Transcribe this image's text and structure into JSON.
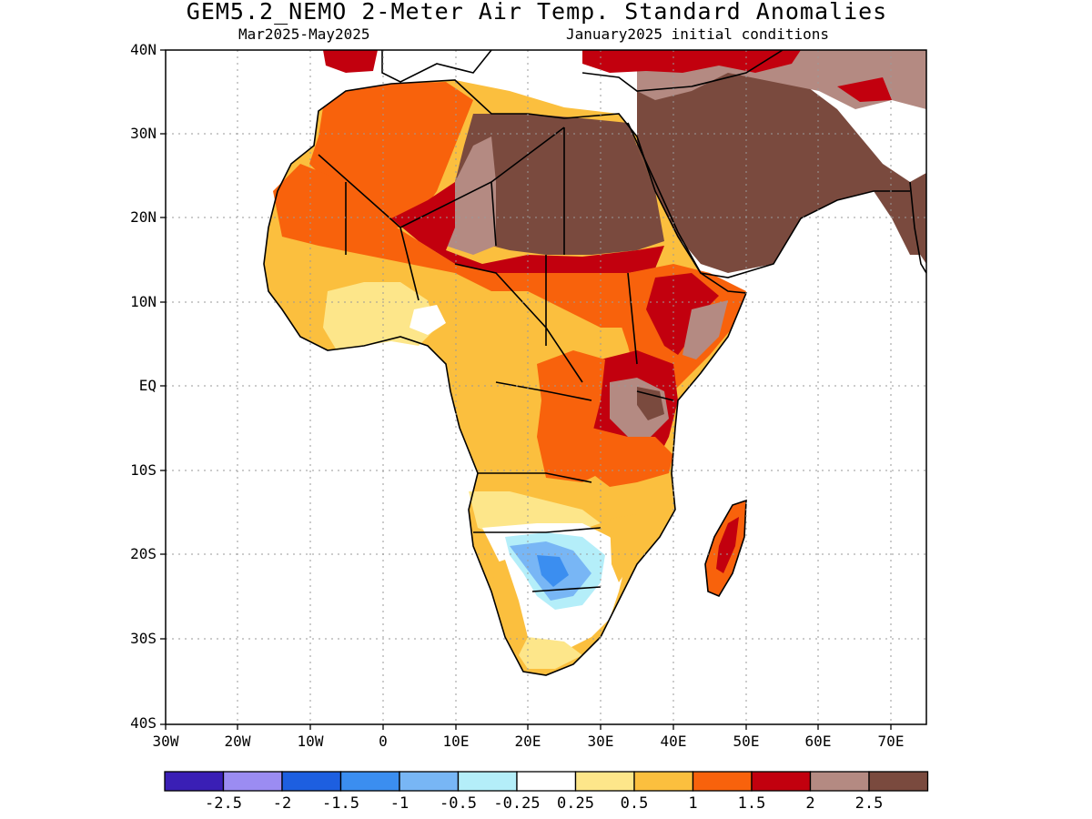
{
  "title": "GEM5.2_NEMO 2-Meter Air Temp. Standard Anomalies",
  "subtitle_left": "Mar2025-May2025",
  "subtitle_right": "January2025 initial conditions",
  "lat_labels": [
    "40N",
    "30N",
    "20N",
    "10N",
    "EQ",
    "10S",
    "20S",
    "30S",
    "40S"
  ],
  "lon_labels": [
    "30W",
    "20W",
    "10W",
    "0",
    "10E",
    "20E",
    "30E",
    "40E",
    "50E",
    "60E",
    "70E"
  ],
  "colorbar": {
    "colors": [
      "#3a1fb5",
      "#9b8cf2",
      "#1d5fe0",
      "#3b8ef0",
      "#78b6f5",
      "#b4eef9",
      "#ffffff",
      "#fde68a",
      "#fbbf3e",
      "#f8620c",
      "#c2000e",
      "#b48a82",
      "#7a4a3e"
    ],
    "labels": [
      "-2.5",
      "-2",
      "-1.5",
      "-1",
      "-0.5",
      "-0.25",
      "0.25",
      "0.5",
      "1",
      "1.5",
      "2",
      "2.5"
    ]
  },
  "map_colors": {
    "land_outline": "#000000",
    "grid": "#9a9a9a"
  }
}
